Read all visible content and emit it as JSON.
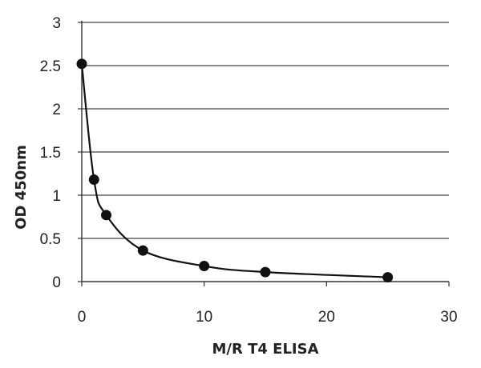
{
  "chart_data": {
    "type": "scatter",
    "xlabel": "M/R T4 ELISA",
    "ylabel": "OD 450nm",
    "xlim": [
      0,
      30
    ],
    "ylim": [
      0,
      3
    ],
    "xticks": [
      0,
      10,
      20,
      30
    ],
    "yticks": [
      0,
      0.5,
      1,
      1.5,
      2,
      2.5,
      3
    ],
    "xtick_labels": [
      "0",
      "10",
      "20",
      "30"
    ],
    "ytick_labels": [
      "0",
      "0.5",
      "1",
      "1.5",
      "2",
      "2.5",
      "3"
    ],
    "grid": "horizontal",
    "legend": "none",
    "trendline": "smooth",
    "marker_color": "#111111",
    "line_color": "#111111",
    "points": [
      {
        "x": 0,
        "y": 2.52
      },
      {
        "x": 1,
        "y": 1.18
      },
      {
        "x": 2,
        "y": 0.77
      },
      {
        "x": 5,
        "y": 0.36
      },
      {
        "x": 10,
        "y": 0.18
      },
      {
        "x": 15,
        "y": 0.11
      },
      {
        "x": 25,
        "y": 0.05
      }
    ]
  }
}
